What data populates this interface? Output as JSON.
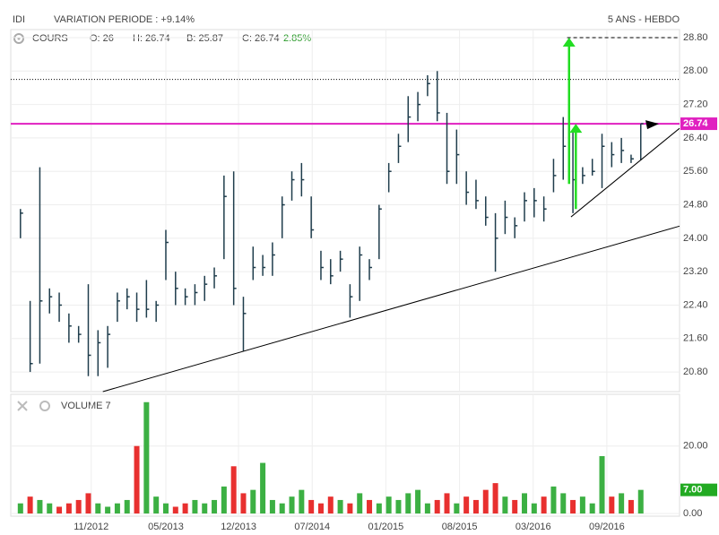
{
  "chart_data": {
    "type": "ohlc",
    "title": "IDI",
    "subtitle": "VARIATION PERIODE : +9.14%",
    "period": "5 ANS - HEBDO",
    "price_label": "COURS",
    "info": {
      "open": "O: 26",
      "high": "H: 26.74",
      "low": "B: 25.87",
      "close": "C: 26.74",
      "change": "2.85%"
    },
    "volume_label": "VOLUME 7",
    "last_price_tag": {
      "value": 26.74,
      "label": "26.74"
    },
    "last_volume_tag": {
      "value": 7,
      "label": "7.00"
    },
    "x": [
      0,
      1,
      2,
      3,
      4,
      5,
      6,
      7,
      8,
      9,
      10,
      11,
      12,
      13,
      14,
      15,
      16,
      17,
      18,
      19,
      20,
      21,
      22,
      23,
      24,
      25,
      26,
      27,
      28,
      29,
      30,
      31,
      32,
      33,
      34,
      35,
      36,
      37,
      38,
      39,
      40,
      41,
      42,
      43,
      44,
      45,
      46,
      47,
      48,
      49,
      50,
      51,
      52,
      53,
      54,
      55,
      56,
      57,
      58,
      59,
      60,
      61,
      62,
      63,
      64
    ],
    "high": [
      24.7,
      22.5,
      25.7,
      22.8,
      22.7,
      22.2,
      21.9,
      22.9,
      21.8,
      21.9,
      22.7,
      22.8,
      22.7,
      23.0,
      22.5,
      24.2,
      23.2,
      22.8,
      22.9,
      23.1,
      23.3,
      25.5,
      25.6,
      22.6,
      23.8,
      23.6,
      23.9,
      25.0,
      25.6,
      25.8,
      25.0,
      23.7,
      23.5,
      23.7,
      22.9,
      23.8,
      23.5,
      24.8,
      25.8,
      26.5,
      27.4,
      27.5,
      27.9,
      28.0,
      27.0,
      26.6,
      25.6,
      25.4,
      25.0,
      24.6,
      24.9,
      24.5,
      25.1,
      25.2,
      25.0,
      25.9,
      26.9,
      26.6,
      25.7,
      25.9,
      26.5,
      26.3,
      26.4,
      26.0,
      26.74
    ],
    "low": [
      24.0,
      20.8,
      21.0,
      22.2,
      22.0,
      21.5,
      21.5,
      20.7,
      20.7,
      20.9,
      22.0,
      22.3,
      22.0,
      22.1,
      22.0,
      23.0,
      22.4,
      22.4,
      22.4,
      22.5,
      22.8,
      23.5,
      22.4,
      21.3,
      23.0,
      23.1,
      23.1,
      24.0,
      24.9,
      25.0,
      24.0,
      23.0,
      22.9,
      23.2,
      22.1,
      22.5,
      23.0,
      23.5,
      25.1,
      25.8,
      26.3,
      26.8,
      27.4,
      26.8,
      25.3,
      25.3,
      24.8,
      24.7,
      24.3,
      23.2,
      24.1,
      24.0,
      24.4,
      24.5,
      24.4,
      25.1,
      25.4,
      24.6,
      25.3,
      25.5,
      25.2,
      25.7,
      25.8,
      25.8,
      25.87
    ],
    "close": [
      24.6,
      21.0,
      22.5,
      22.6,
      22.4,
      21.9,
      21.7,
      21.2,
      21.5,
      21.7,
      22.5,
      22.6,
      22.3,
      22.3,
      22.4,
      23.9,
      22.8,
      22.6,
      22.7,
      22.9,
      23.1,
      25.0,
      22.8,
      22.2,
      23.3,
      23.3,
      23.6,
      24.8,
      25.4,
      25.4,
      24.2,
      23.3,
      23.1,
      23.5,
      22.6,
      23.6,
      23.3,
      24.7,
      25.6,
      26.2,
      26.9,
      27.2,
      27.7,
      27.0,
      25.6,
      26.0,
      25.1,
      24.9,
      24.5,
      24.0,
      24.5,
      24.3,
      24.9,
      24.9,
      24.7,
      25.5,
      26.2,
      25.4,
      25.5,
      25.6,
      26.2,
      26.0,
      26.1,
      25.9,
      26.74
    ],
    "volume": [
      3,
      5,
      4,
      3,
      2,
      3,
      4,
      6,
      3,
      2,
      3,
      4,
      20,
      33,
      5,
      3,
      2,
      3,
      4,
      3,
      4,
      8,
      14,
      6,
      7,
      15,
      4,
      3,
      5,
      7,
      4,
      3,
      5,
      4,
      3,
      6,
      4,
      3,
      5,
      4,
      6,
      7,
      3,
      4,
      6,
      3,
      5,
      4,
      7,
      9,
      5,
      4,
      6,
      3,
      5,
      8,
      6,
      4,
      5,
      3,
      17,
      5,
      6,
      4,
      7
    ],
    "up_color": "#3cb043",
    "down_color": "#e8302f",
    "bar_color": "#1f3d4c",
    "xlim": [
      -1,
      68
    ],
    "xticks": [
      {
        "value": 7.3,
        "label": "11/2012"
      },
      {
        "value": 15,
        "label": "05/2013"
      },
      {
        "value": 22.5,
        "label": "12/2013"
      },
      {
        "value": 30.1,
        "label": "07/2014"
      },
      {
        "value": 37.7,
        "label": "01/2015"
      },
      {
        "value": 45.3,
        "label": "08/2015"
      },
      {
        "value": 52.9,
        "label": "03/2016"
      },
      {
        "value": 60.5,
        "label": "09/2016"
      }
    ],
    "ylim": [
      20.33,
      28.95
    ],
    "yticks": [
      {
        "value": 20.8,
        "label": "20.80"
      },
      {
        "value": 21.6,
        "label": "21.60"
      },
      {
        "value": 22.4,
        "label": "22.40"
      },
      {
        "value": 23.2,
        "label": "23.20"
      },
      {
        "value": 24,
        "label": "24.00"
      },
      {
        "value": 24.8,
        "label": "24.80"
      },
      {
        "value": 25.6,
        "label": "25.60"
      },
      {
        "value": 26.4,
        "label": "26.40"
      },
      {
        "value": 27.2,
        "label": "27.20"
      },
      {
        "value": 28,
        "label": "28.00"
      },
      {
        "value": 28.8,
        "label": "28.80"
      }
    ],
    "y2lim": [
      0,
      34
    ],
    "y2ticks": [
      {
        "value": 0,
        "label": "0.00"
      },
      {
        "value": 20,
        "label": "20.00"
      }
    ],
    "grid": true,
    "resistance": {
      "value": 26.74,
      "color": "#e020c0"
    },
    "levels": [
      {
        "value": 27.8,
        "from": -1
      },
      {
        "value": 28.8,
        "from": 56.4
      }
    ],
    "trendlines": [
      {
        "x": [
          8.5,
          68
        ],
        "y": [
          20.33,
          24.29
        ]
      },
      {
        "x": [
          56.8,
          68
        ],
        "y": [
          24.51,
          26.63
        ]
      }
    ],
    "arrows": [
      {
        "x": 57.3,
        "from": 24.7,
        "to": 26.74
      },
      {
        "x": 56.6,
        "from": 25.3,
        "to": 28.8
      }
    ],
    "arrow_color": "#22dd22"
  }
}
